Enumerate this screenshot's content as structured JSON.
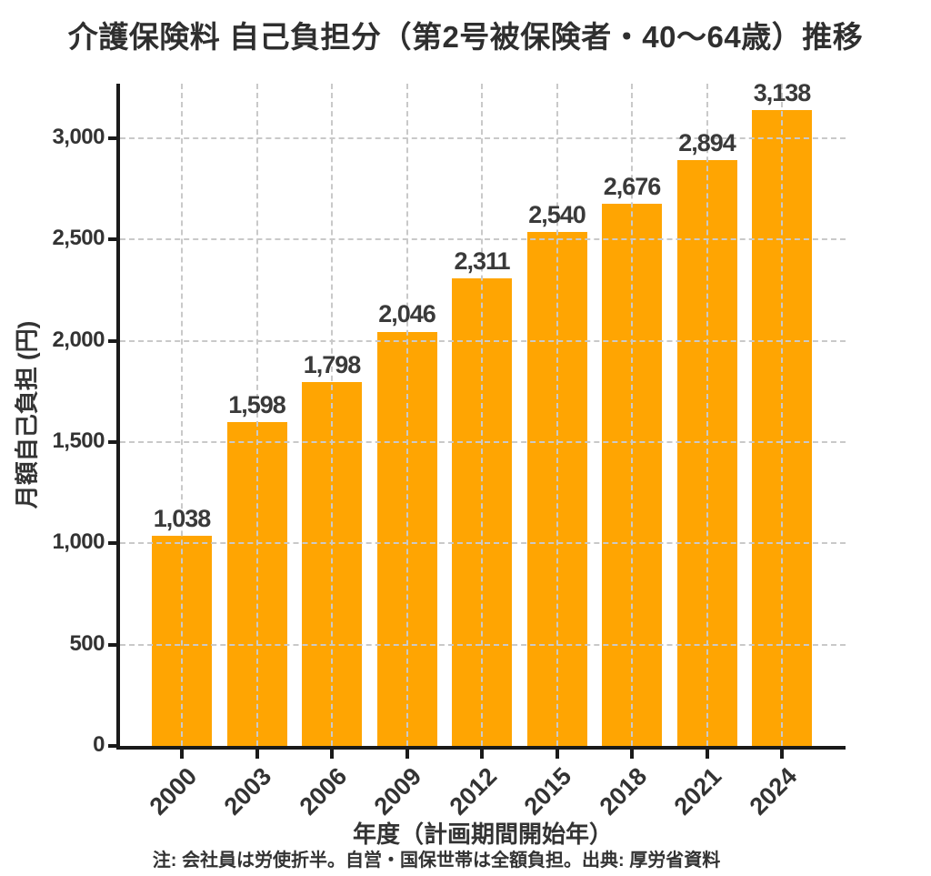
{
  "chart_data": {
    "type": "bar",
    "title": "介護保険料 自己負担分（第2号被保険者・40～64歳）推移",
    "xlabel": "年度（計画期間開始年）",
    "ylabel": "月額自己負担 (円)",
    "footnote": "注: 会社員は労使折半。自営・国保世帯は全額負担。出典: 厚労省資料",
    "categories": [
      "2000",
      "2003",
      "2006",
      "2009",
      "2012",
      "2015",
      "2018",
      "2021",
      "2024"
    ],
    "values": [
      1038,
      1598,
      1798,
      2046,
      2311,
      2540,
      2676,
      2894,
      3138
    ],
    "value_labels": [
      "1,038",
      "1,598",
      "1,798",
      "2,046",
      "2,311",
      "2,540",
      "2,676",
      "2,894",
      "3,138"
    ],
    "yticks": {
      "values": [
        0,
        500,
        1000,
        1500,
        2000,
        2500,
        3000
      ],
      "labels": [
        "0",
        "500",
        "1,000",
        "1,500",
        "2,000",
        "2,500",
        "3,000"
      ]
    },
    "ylim": [
      0,
      3270
    ],
    "grid": {
      "style": "dashed",
      "color": "#c9c9c9",
      "horizontal": true,
      "vertical": true,
      "drawn_above_bars": true
    },
    "legend": null,
    "colors": {
      "bar": "#FFA502",
      "text": "#333333",
      "axis": "#1a1a1a"
    }
  }
}
